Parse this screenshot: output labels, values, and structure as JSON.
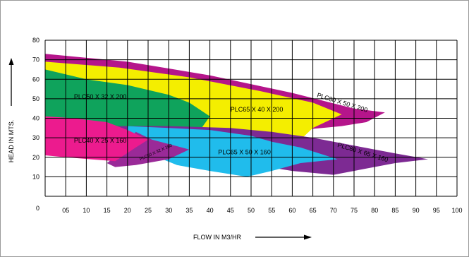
{
  "chart_data": {
    "type": "area",
    "xlabel": "FLOW IN M3/HR",
    "ylabel": "HEAD IN MTS.",
    "x_ticks": [
      "05",
      "10",
      "15",
      "20",
      "25",
      "30",
      "35",
      "40",
      "45",
      "50",
      "55",
      "60",
      "65",
      "70",
      "75",
      "80",
      "85",
      "90",
      "95",
      "100"
    ],
    "y_ticks": [
      "0",
      "10",
      "20",
      "30",
      "40",
      "50",
      "60",
      "70",
      "80"
    ],
    "x_origin_label": "0",
    "xlim": [
      0,
      100
    ],
    "ylim": [
      0,
      80
    ],
    "grid": true,
    "regions": [
      {
        "label": "PLC80 X 50 X 200",
        "color": "#b5158b",
        "polygon": [
          [
            0,
            73
          ],
          [
            20,
            69
          ],
          [
            40,
            62
          ],
          [
            60,
            53
          ],
          [
            75,
            45
          ],
          [
            82.5,
            43
          ],
          [
            78,
            38
          ],
          [
            72,
            36
          ],
          [
            62,
            34
          ],
          [
            45,
            35
          ],
          [
            32,
            36
          ],
          [
            20,
            38
          ],
          [
            0,
            39
          ]
        ]
      },
      {
        "label": "PLC65 X 40 X 200",
        "color": "#f4ee00",
        "polygon": [
          [
            0,
            69
          ],
          [
            18,
            66
          ],
          [
            35,
            61
          ],
          [
            52,
            54
          ],
          [
            65,
            48
          ],
          [
            72,
            42
          ],
          [
            65,
            35
          ],
          [
            62,
            29
          ],
          [
            55,
            28
          ],
          [
            45,
            30
          ],
          [
            35,
            32
          ],
          [
            20,
            33
          ],
          [
            0,
            34
          ]
        ]
      },
      {
        "label": "PLC50 X 32 X 200",
        "color": "#0fa35c",
        "polygon": [
          [
            0,
            65
          ],
          [
            10,
            60
          ],
          [
            20,
            57
          ],
          [
            30,
            52
          ],
          [
            35,
            48
          ],
          [
            40,
            41
          ],
          [
            38,
            35
          ],
          [
            35,
            32
          ],
          [
            25,
            30
          ],
          [
            15,
            31
          ],
          [
            5,
            33
          ],
          [
            0,
            36
          ]
        ]
      },
      {
        "label": "PLC80 X 65 X 160",
        "color": "#7d2a93",
        "polygon": [
          [
            15,
            36
          ],
          [
            30,
            36
          ],
          [
            45,
            35
          ],
          [
            55,
            33
          ],
          [
            65,
            30
          ],
          [
            75,
            26
          ],
          [
            85,
            22
          ],
          [
            93,
            19
          ],
          [
            85,
            17
          ],
          [
            70,
            11
          ],
          [
            60,
            13
          ],
          [
            48,
            17
          ],
          [
            38,
            19
          ],
          [
            25,
            20
          ],
          [
            15,
            20
          ]
        ]
      },
      {
        "label": "PLC65 X 50 X 160",
        "color": "#20bcec",
        "polygon": [
          [
            20,
            36
          ],
          [
            30,
            35
          ],
          [
            40,
            34
          ],
          [
            50,
            31
          ],
          [
            55,
            28
          ],
          [
            62,
            25
          ],
          [
            71,
            19
          ],
          [
            62,
            17
          ],
          [
            55,
            13
          ],
          [
            49,
            10
          ],
          [
            40,
            13
          ],
          [
            32,
            16
          ],
          [
            25,
            22
          ],
          [
            20,
            27
          ]
        ]
      },
      {
        "label": "PLC50 X 32 X 160",
        "color": "#9a2a98",
        "polygon": [
          [
            22,
            33
          ],
          [
            26,
            29
          ],
          [
            35,
            24
          ],
          [
            30,
            19
          ],
          [
            22,
            16
          ],
          [
            17,
            15
          ],
          [
            15,
            17
          ],
          [
            18,
            22
          ],
          [
            20,
            27
          ]
        ]
      },
      {
        "label": "PLC40 X 25 X 160",
        "color": "#ec1b8e",
        "polygon": [
          [
            0,
            41
          ],
          [
            7,
            40
          ],
          [
            15,
            38
          ],
          [
            20,
            34
          ],
          [
            25,
            29
          ],
          [
            22,
            25
          ],
          [
            17,
            18
          ],
          [
            5,
            20
          ],
          [
            0,
            21
          ]
        ]
      }
    ],
    "arrow_marks": [
      "y-axis arrow",
      "x-axis arrow"
    ]
  }
}
